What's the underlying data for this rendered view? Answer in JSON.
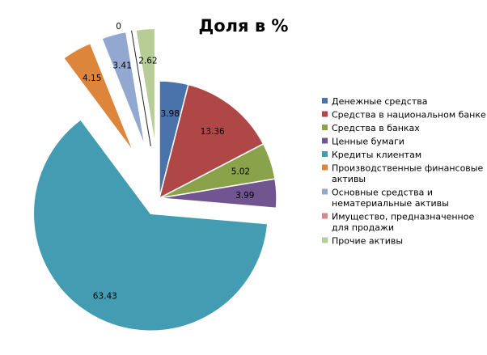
{
  "chart_data": {
    "type": "pie",
    "title": "Доля в %",
    "exploded": true,
    "legend_position": "right",
    "slices": [
      {
        "label": "Денежные средства",
        "legend_lines": [
          "Денежные средства"
        ],
        "value": 3.98,
        "value_label": "3.98",
        "color": "#4a73ab"
      },
      {
        "label": "Средства в национальном банке",
        "legend_lines": [
          "Средства в национальном банке"
        ],
        "value": 13.36,
        "value_label": "13.36",
        "color": "#ae4746"
      },
      {
        "label": "Средства в банках",
        "legend_lines": [
          "Средства в банках"
        ],
        "value": 5.02,
        "value_label": "5.02",
        "color": "#8aa24a"
      },
      {
        "label": "Ценные бумаги",
        "legend_lines": [
          "Ценные бумаги"
        ],
        "value": 3.99,
        "value_label": "3.99",
        "color": "#715591"
      },
      {
        "label": "Кредиты клиентам",
        "legend_lines": [
          "Кредиты клиентам"
        ],
        "value": 63.43,
        "value_label": "63.43",
        "color": "#449cb2"
      },
      {
        "label": "Производственные финансовые активы",
        "legend_lines": [
          "Производственные финансовые",
          "активы"
        ],
        "value": 4.15,
        "value_label": "4.15",
        "color": "#dd853a"
      },
      {
        "label": "Основные средства и нематериальные активы",
        "legend_lines": [
          "Основные средства и",
          "нематериальные активы"
        ],
        "value": 3.41,
        "value_label": "3.41",
        "color": "#93a8d0"
      },
      {
        "label": "Имущество, предназначенное для продажи",
        "legend_lines": [
          "Имущество, предназначенное",
          "для продажи"
        ],
        "value": 0,
        "value_label": "0",
        "color": "#d28b8b"
      },
      {
        "label": "Прочие активы",
        "legend_lines": [
          "Прочие активы"
        ],
        "value": 2.62,
        "value_label": "2.62",
        "color": "#b6cd96"
      }
    ]
  }
}
